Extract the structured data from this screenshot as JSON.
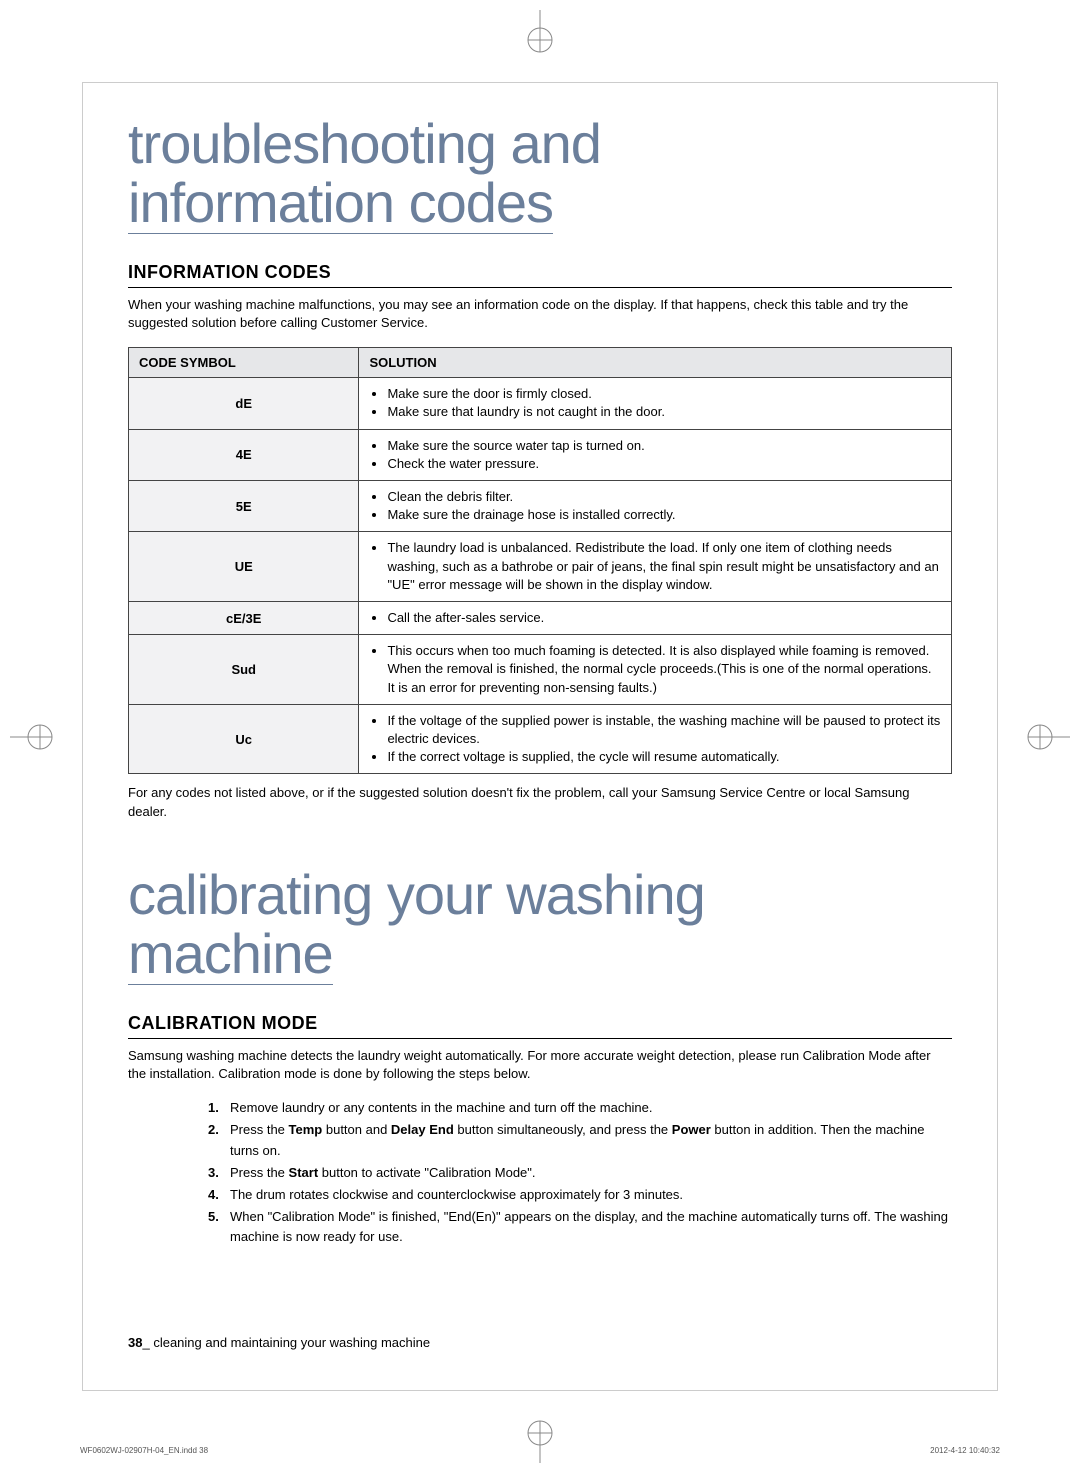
{
  "colors": {
    "headingBlue": "#6b7f9b",
    "tableHeaderBg": "#e6e7e9",
    "codeCellBg": "#f2f2f3",
    "border": "#444444",
    "bodyText": "#000000",
    "background": "#ffffff"
  },
  "section1": {
    "title_line1": "troubleshooting and",
    "title_line2": "information codes",
    "h2": "INFORMATION CODES",
    "intro": "When your washing machine malfunctions, you may see an information code on the display. If that happens, check this table and try the suggested solution before calling Customer Service.",
    "table": {
      "headers": [
        "CODE SYMBOL",
        "SOLUTION"
      ],
      "rows": [
        {
          "code": "dE",
          "items": [
            "Make sure the door is firmly closed.",
            "Make sure that laundry is not caught in the door."
          ]
        },
        {
          "code": "4E",
          "items": [
            "Make sure the source water tap is turned on.",
            "Check the water pressure."
          ]
        },
        {
          "code": "5E",
          "items": [
            "Clean the debris filter.",
            "Make sure the drainage hose is installed correctly."
          ]
        },
        {
          "code": "UE",
          "items": [
            "The laundry load is unbalanced. Redistribute the load. If only one item of clothing needs washing, such as a bathrobe or pair of jeans, the final spin result might be unsatisfactory and an \"UE\" error message will be shown in the display window."
          ]
        },
        {
          "code": "cE/3E",
          "items": [
            "Call the after-sales service."
          ]
        },
        {
          "code": "Sud",
          "items": [
            "This occurs when too much foaming is detected. It is also displayed while foaming is removed. When the removal is finished, the normal cycle proceeds.(This is one of the normal operations. It is an error for preventing non-sensing faults.)"
          ]
        },
        {
          "code": "Uc",
          "items": [
            "If the voltage of the supplied power is instable, the washing machine will be paused to protect its electric devices.",
            "If the correct voltage is supplied, the cycle will resume automatically."
          ]
        }
      ]
    },
    "outro": "For any codes not listed above, or if the suggested solution doesn't fix the problem, call your Samsung Service Centre or local Samsung dealer."
  },
  "section2": {
    "title_line1": "calibrating your washing",
    "title_line2": "machine",
    "h2": "CALIBRATION MODE",
    "intro": "Samsung washing machine detects the laundry weight automatically. For more accurate weight detection, please run Calibration Mode after the installation. Calibration mode is done by following the steps below.",
    "steps": [
      {
        "num": "1.",
        "text_before": "Remove laundry or any contents in the machine and turn off the machine.",
        "bold": []
      },
      {
        "num": "2.",
        "html": "Press the <b>Temp</b> button and <b>Delay End</b> button simultaneously, and press the <b>Power</b> button in addition. Then the machine turns on."
      },
      {
        "num": "3.",
        "html": "Press the <b>Start</b> button to activate \"Calibration Mode\"."
      },
      {
        "num": "4.",
        "html": "The drum rotates clockwise and counterclockwise approximately for 3 minutes."
      },
      {
        "num": "5.",
        "html": "When \"Calibration Mode\" is finished, \"End(En)\" appears on the display, and the machine automatically turns off. The washing machine is now ready for use."
      }
    ]
  },
  "footer": {
    "page_number": "38",
    "running_title": "cleaning and maintaining your washing machine",
    "print_left": "WF0602WJ-02907H-04_EN.indd   38",
    "print_right": "2012-4-12   10:40:32"
  }
}
